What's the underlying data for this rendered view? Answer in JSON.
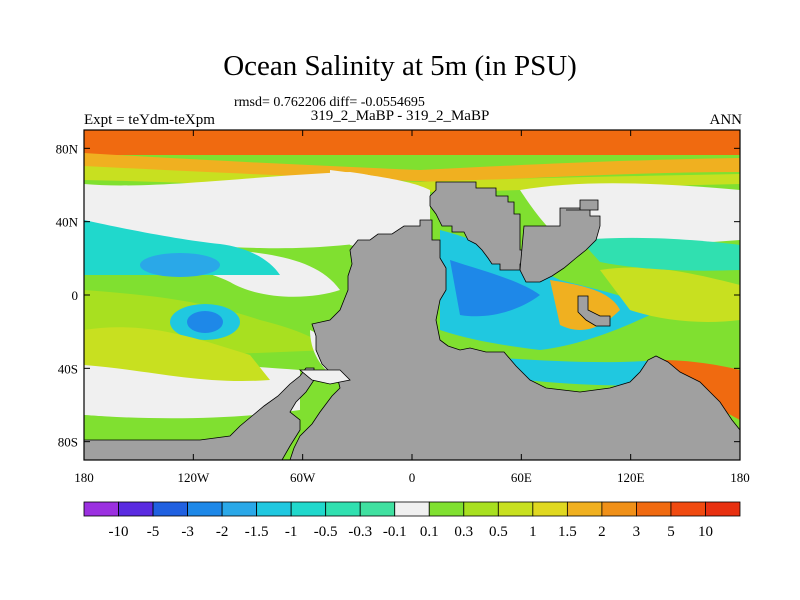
{
  "title": "Ocean Salinity at 5m (in PSU)",
  "stats": "rmsd= 0.762206  diff= -0.0554695",
  "subtitle": "319_2_MaBP - 319_2_MaBP",
  "expt_label": "Expt = teYdm-teXpm",
  "period_label": "ANN",
  "map": {
    "projection": "cylindrical-equidistant",
    "lon_range": [
      -180,
      180
    ],
    "lat_range": [
      -90,
      90
    ],
    "lon_ticks": [
      {
        "value": -180,
        "label": "180"
      },
      {
        "value": -120,
        "label": "120W"
      },
      {
        "value": -60,
        "label": "60W"
      },
      {
        "value": 0,
        "label": "0"
      },
      {
        "value": 60,
        "label": "60E"
      },
      {
        "value": 120,
        "label": "120E"
      },
      {
        "value": 180,
        "label": "180"
      }
    ],
    "lat_ticks": [
      {
        "value": 80,
        "label": "80N"
      },
      {
        "value": 40,
        "label": "40N"
      },
      {
        "value": 0,
        "label": "0"
      },
      {
        "value": -40,
        "label": "40S"
      },
      {
        "value": -80,
        "label": "80S"
      }
    ],
    "land_color": "#a0a0a0"
  },
  "colorbar": {
    "labels": [
      "-10",
      "-5",
      "-3",
      "-2",
      "-1.5",
      "-1",
      "-0.5",
      "-0.3",
      "-0.1",
      "0.1",
      "0.3",
      "0.5",
      "1",
      "1.5",
      "2",
      "3",
      "5",
      "10"
    ],
    "colors": [
      "#9b30e0",
      "#5a2be0",
      "#2060e0",
      "#1e88e8",
      "#2aa8e8",
      "#20c8e0",
      "#20d8cc",
      "#30e0b0",
      "#40e0a0",
      "#f0f0f0",
      "#80e030",
      "#a8e020",
      "#c8e020",
      "#e0d820",
      "#f0b020",
      "#f09018",
      "#f06a10",
      "#f04a10",
      "#e83010"
    ]
  }
}
